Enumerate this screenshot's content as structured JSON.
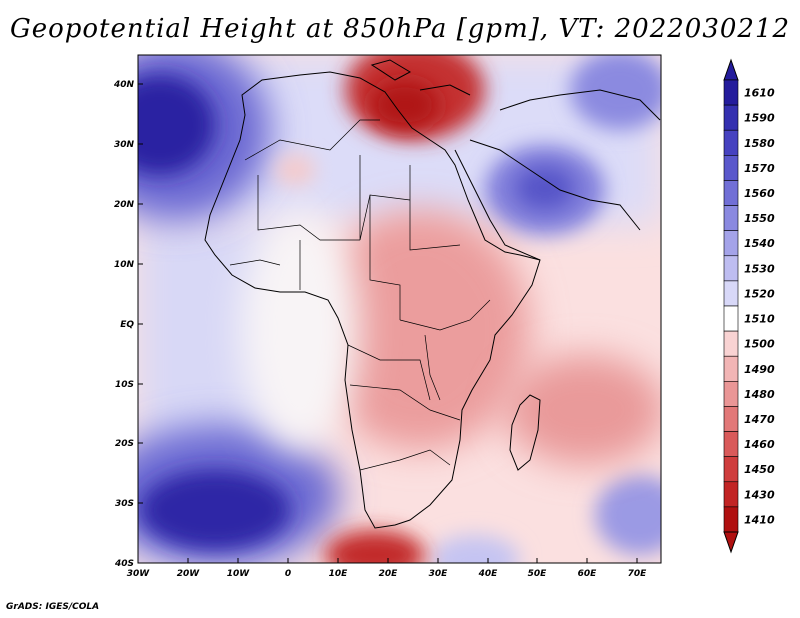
{
  "title": "Geopotential Height at 850hPa [gpm], VT: 2022030212",
  "footer": "GrADS: IGES/COLA",
  "map": {
    "lat_labels": [
      "40N",
      "30N",
      "20N",
      "10N",
      "EQ",
      "10S",
      "20S",
      "30S",
      "40S"
    ],
    "lon_labels": [
      "30W",
      "20W",
      "10W",
      "0",
      "10E",
      "20E",
      "30E",
      "40E",
      "50E",
      "60E",
      "70E"
    ]
  },
  "colorbar": {
    "levels": [
      "1610",
      "1590",
      "1580",
      "1570",
      "1560",
      "1550",
      "1540",
      "1530",
      "1520",
      "1510",
      "1500",
      "1490",
      "1480",
      "1470",
      "1460",
      "1450",
      "1430",
      "1410"
    ],
    "colors": [
      "#241c9c",
      "#3430b0",
      "#4642c0",
      "#5a58cc",
      "#716fd6",
      "#8a89e0",
      "#a4a3e9",
      "#bebdf1",
      "#d8d8f8",
      "#ffffff",
      "#f9d3d3",
      "#f2b5b5",
      "#ea9696",
      "#e27878",
      "#d95a5a",
      "#cf3d3d",
      "#c22424",
      "#b01010"
    ]
  },
  "features": {
    "highs": [
      "strong-blue-north-atlantic",
      "blue-south-atlantic",
      "blue-arabia",
      "blue-south-indian-ocean"
    ],
    "lows": [
      "red-east-mediterranean",
      "red-south-of-africa",
      "red-central-africa"
    ]
  }
}
